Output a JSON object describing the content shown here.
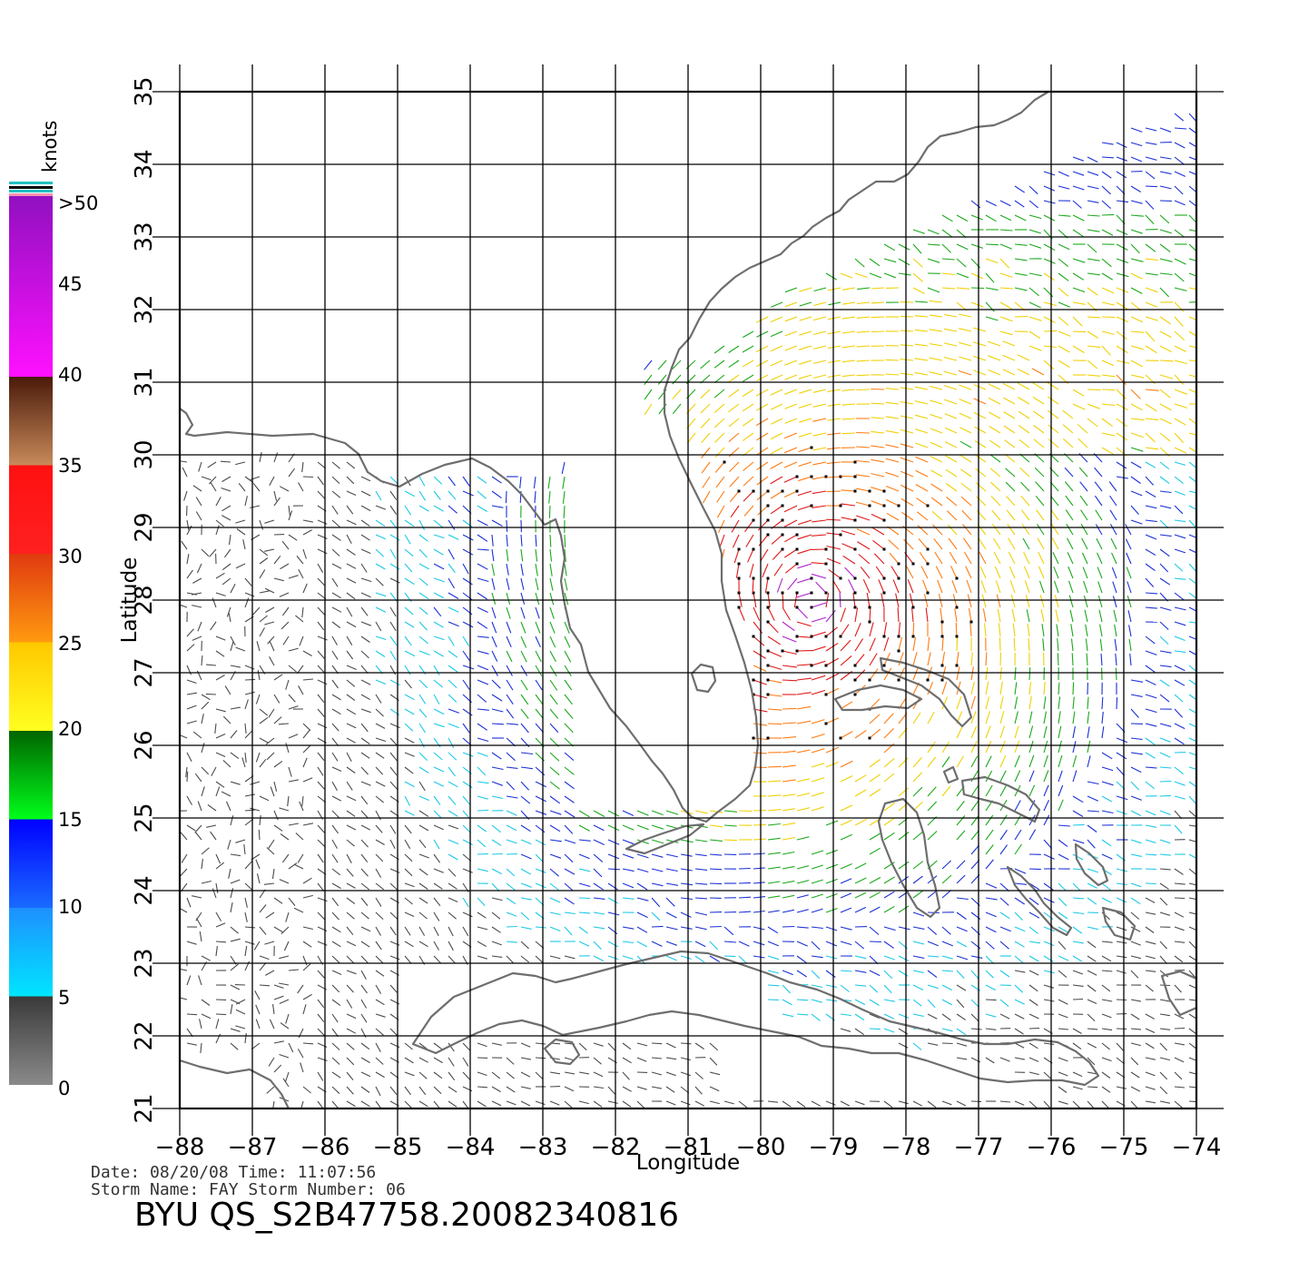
{
  "plot": {
    "xlabel": "Longitude",
    "ylabel": "Latitude",
    "lon_range": [
      -88,
      -74
    ],
    "lat_range": [
      21,
      35
    ],
    "lon_ticks": [
      -88,
      -87,
      -86,
      -85,
      -84,
      -83,
      -82,
      -81,
      -80,
      -79,
      -78,
      -77,
      -76,
      -75,
      -74
    ],
    "lat_ticks": [
      21,
      22,
      23,
      24,
      25,
      26,
      27,
      28,
      29,
      30,
      31,
      32,
      33,
      34,
      35
    ],
    "grid": true
  },
  "colorbar": {
    "unit_label": "knots",
    "labels": [
      ">50",
      "45",
      "40",
      "35",
      "30",
      "25",
      "20",
      "15",
      "10",
      "5",
      "0"
    ],
    "bands": [
      {
        "from": 0,
        "to": 5,
        "top": "#3a3a3a",
        "bottom": "#8a8a8a"
      },
      {
        "from": 5,
        "to": 10,
        "top": "#1e90ff",
        "bottom": "#00e5ff"
      },
      {
        "from": 10,
        "to": 15,
        "top": "#0000ff",
        "bottom": "#1a6bff"
      },
      {
        "from": 15,
        "to": 20,
        "top": "#006400",
        "bottom": "#00ff1a"
      },
      {
        "from": 20,
        "to": 25,
        "top": "#ffc800",
        "bottom": "#ffff20"
      },
      {
        "from": 25,
        "to": 30,
        "top": "#e03a10",
        "bottom": "#ff9a10"
      },
      {
        "from": 30,
        "to": 35,
        "top": "#ff1010",
        "bottom": "#ff2020"
      },
      {
        "from": 35,
        "to": 40,
        "top": "#4a1a0a",
        "bottom": "#c88a5a"
      },
      {
        "from": 40,
        "to": 50,
        "top": "#9010c0",
        "bottom": "#ff10ff"
      },
      {
        "from": 50,
        "to": 55,
        "top": "#6010c0",
        "bottom": "#7a20d0"
      }
    ],
    "cap_colors": [
      "#20c0c0",
      "#000000",
      "#ff90b0"
    ]
  },
  "wind_speed_colors": {
    "0-5": "#4a4a4a",
    "5-10": "#19c8e6",
    "10-15": "#1a2fd6",
    "15-20": "#1aa81a",
    "20-25": "#f0d000",
    "25-30": "#ff7a10",
    "30-35": "#e01818",
    "40-50": "#b020d0"
  },
  "coastline_color": "#6e6e6e",
  "footer": {
    "line1": "Date: 08/20/08   Time: 11:07:56",
    "line2": "Storm Name: FAY   Storm Number: 06",
    "title": "BYU QS_S2B47758.20082340816"
  },
  "storm": {
    "name": "FAY",
    "number": "06",
    "center_lon": -79.3,
    "center_lat": 28.0
  }
}
